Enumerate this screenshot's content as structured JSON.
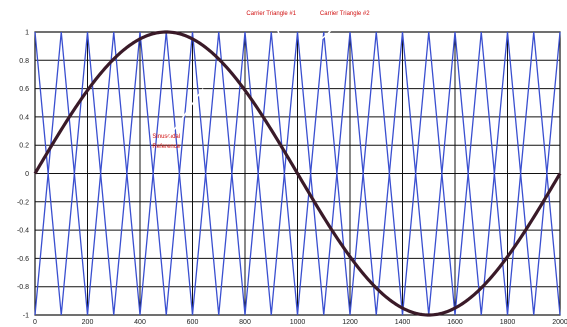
{
  "chart_data": {
    "type": "line",
    "title": "",
    "xlabel": "",
    "ylabel": "",
    "xlim": [
      0,
      2000
    ],
    "ylim": [
      -1,
      1
    ],
    "grid": true,
    "x_ticks": [
      0,
      200,
      400,
      600,
      800,
      1000,
      1200,
      1400,
      1600,
      1800,
      2000
    ],
    "y_ticks": [
      -1,
      -0.8,
      -0.6,
      -0.4,
      -0.2,
      0,
      0.2,
      0.4,
      0.6,
      0.8,
      1
    ],
    "y_tick_labels": [
      "-1",
      "-0.8",
      "-0.6",
      "-0.4",
      "-0.2",
      "0",
      "0.2",
      "0.4",
      "0.6",
      "0.8",
      "1"
    ],
    "x_tick_labels": [
      "0",
      "200",
      "400",
      "600",
      "800",
      "1000",
      "1200",
      "1400",
      "1600",
      "1800",
      "2000"
    ],
    "series": [
      {
        "kind": "sine",
        "amplitude": 1,
        "period": 2000,
        "color": "#3a1a28",
        "x": [
          0,
          250,
          500,
          750,
          1000,
          1250,
          1500,
          1750,
          2000
        ],
        "values": [
          0,
          0.707,
          1,
          0.707,
          0,
          -0.707,
          -1,
          -0.707,
          0
        ]
      },
      {
        "kind": "triangle",
        "color": "#3a4fd0",
        "x": [
          0,
          100,
          200,
          300,
          400,
          500,
          600,
          700,
          800,
          900,
          1000,
          1100,
          1200,
          1300,
          1400,
          1500,
          1600,
          1700,
          1800,
          1900,
          2000
        ],
        "values": [
          -1,
          1,
          -1,
          1,
          -1,
          1,
          -1,
          1,
          -1,
          1,
          -1,
          1,
          -1,
          1,
          -1,
          1,
          -1,
          1,
          -1,
          1,
          -1
        ]
      },
      {
        "kind": "triangle",
        "color": "#3a4fd0",
        "x": [
          0,
          100,
          200,
          300,
          400,
          500,
          600,
          700,
          800,
          900,
          1000,
          1100,
          1200,
          1300,
          1400,
          1500,
          1600,
          1700,
          1800,
          1900,
          2000
        ],
        "values": [
          1,
          -1,
          1,
          -1,
          1,
          -1,
          1,
          -1,
          1,
          -1,
          1,
          -1,
          1,
          -1,
          1,
          -1,
          1,
          -1,
          1,
          -1,
          1
        ]
      }
    ],
    "annotations": [
      {
        "text": "Carrier Triangle #1",
        "x": 900,
        "y": 1.12,
        "arrow_to": [
          960,
          0.88
        ]
      },
      {
        "text": "Carrier Triangle #2",
        "x": 1180,
        "y": 1.12,
        "arrow_to": [
          1050,
          0.88
        ]
      },
      {
        "text": "Sinusoidal",
        "x": 500,
        "y": 0.25,
        "arrow_to": [
          640,
          0.6
        ]
      },
      {
        "text": "Reference",
        "x": 500,
        "y": 0.18
      }
    ]
  }
}
